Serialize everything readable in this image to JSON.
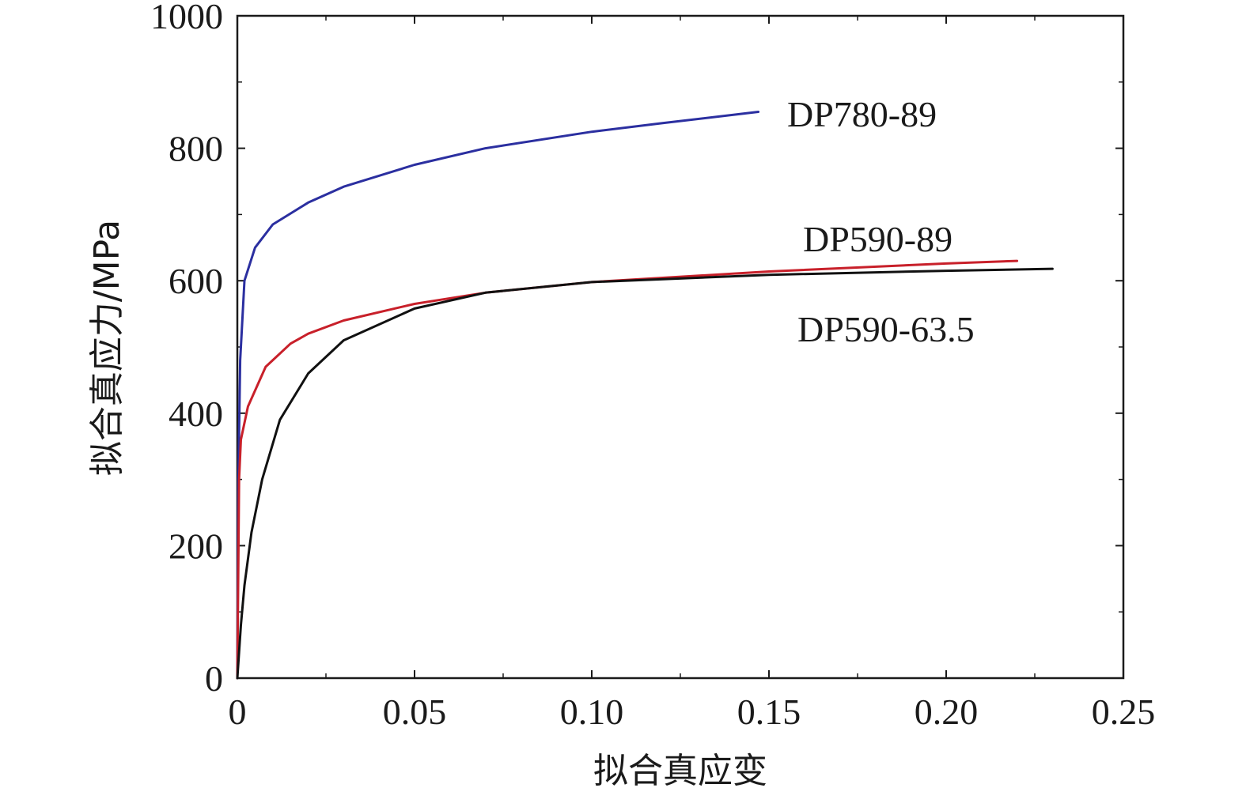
{
  "chart_data": {
    "type": "line",
    "title": "",
    "xlabel": "拟合真应变",
    "ylabel": "拟合真应力/MPa",
    "xlim": [
      0,
      0.25
    ],
    "ylim": [
      0,
      1000
    ],
    "x_ticks": [
      0,
      0.05,
      0.1,
      0.15,
      0.2,
      0.25
    ],
    "x_tick_labels": [
      "0",
      "0.05",
      "0.10",
      "0.15",
      "0.20",
      "0.25"
    ],
    "y_ticks": [
      0,
      200,
      400,
      600,
      800,
      1000
    ],
    "y_tick_labels": [
      "0",
      "200",
      "400",
      "600",
      "800",
      "1000"
    ],
    "grid": false,
    "series": [
      {
        "name": "DP780-89",
        "color": "#2b2fa0",
        "x": [
          0,
          0.0003,
          0.0008,
          0.002,
          0.005,
          0.01,
          0.02,
          0.03,
          0.05,
          0.07,
          0.1,
          0.12,
          0.147
        ],
        "y": [
          0,
          300,
          480,
          600,
          650,
          685,
          718,
          742,
          775,
          800,
          825,
          838,
          855
        ]
      },
      {
        "name": "DP590-89",
        "color": "#c8202a",
        "x": [
          0,
          0.0005,
          0.001,
          0.003,
          0.008,
          0.015,
          0.02,
          0.03,
          0.05,
          0.07,
          0.1,
          0.15,
          0.2,
          0.22
        ],
        "y": [
          0,
          300,
          360,
          410,
          470,
          505,
          520,
          540,
          565,
          582,
          598,
          614,
          626,
          630
        ]
      },
      {
        "name": "DP590-63.5",
        "color": "#111111",
        "x": [
          0,
          0.001,
          0.002,
          0.004,
          0.007,
          0.012,
          0.02,
          0.03,
          0.05,
          0.07,
          0.1,
          0.15,
          0.2,
          0.23
        ],
        "y": [
          0,
          80,
          140,
          220,
          300,
          390,
          460,
          510,
          558,
          582,
          598,
          609,
          615,
          618
        ]
      }
    ],
    "annotations": [
      {
        "text": "DP780-89",
        "series": "DP780-89"
      },
      {
        "text": "DP590-89",
        "series": "DP590-89"
      },
      {
        "text": "DP590-63.5",
        "series": "DP590-63.5"
      }
    ]
  }
}
